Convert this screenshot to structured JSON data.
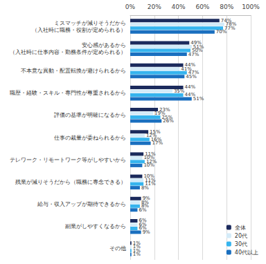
{
  "chart_data": {
    "type": "bar",
    "orientation": "horizontal",
    "categories": [
      "ミスマッチが減りそうだから\n（入社時に職務・役割が定められる）",
      "安心感があるから\n（入社時に仕事内容・勤務条件が定められる）",
      "不本意な異動・配置転換が避けられるから",
      "職歴・経験・スキル・専門性が尊重されるから",
      "評価の基準が明確になるから",
      "仕事の裁量が委ねられるから",
      "テレワーク・リモートワーク等がしやすいから",
      "残業が減りそうだから（職務に専念できる）",
      "給与・収入アップが期待できるから",
      "副業がしやすくなるから",
      "その他"
    ],
    "series": [
      {
        "name": "全体",
        "color": "#1b2a5c",
        "values": [
          74,
          49,
          44,
          44,
          23,
          15,
          11,
          10,
          9,
          6,
          1
        ],
        "value_labels": [
          "74%",
          "49%",
          "44%",
          "44%",
          "23%",
          "15%",
          "11%",
          "10%",
          "9%",
          "6%",
          "1%"
        ]
      },
      {
        "name": "20代",
        "color": "#d4ebf8",
        "values": [
          78,
          51,
          41,
          35,
          19,
          12,
          10,
          11,
          8,
          6,
          1
        ],
        "value_labels": [
          "78%",
          "51%",
          "41%",
          "35%",
          "19%",
          "12%",
          "10%",
          "11%",
          "8%",
          "6%",
          "1%"
        ]
      },
      {
        "name": "30代",
        "color": "#36b4ee",
        "values": [
          77,
          50,
          47,
          44,
          25,
          16,
          12,
          11,
          8,
          6,
          1
        ],
        "value_labels": [
          "77%",
          "50%",
          "47%",
          "44%",
          "25%",
          "16%",
          "12%",
          "11%",
          "8%",
          "6%",
          "1%"
        ]
      },
      {
        "name": "40代以上",
        "color": "#1a6fbf",
        "values": [
          70,
          47,
          45,
          51,
          26,
          17,
          10,
          8,
          6,
          9,
          1
        ],
        "value_labels": [
          "70%",
          "47%",
          "45%",
          "51%",
          "26%",
          "17%",
          "10%",
          "8%",
          "6%",
          "9%",
          "1%"
        ]
      }
    ],
    "xlim": [
      0,
      100
    ],
    "xticks": [
      {
        "value": 0,
        "label": "0%"
      },
      {
        "value": 20,
        "label": "20%"
      },
      {
        "value": 40,
        "label": "40%"
      },
      {
        "value": 60,
        "label": "60%"
      },
      {
        "value": 80,
        "label": "80%"
      },
      {
        "value": 100,
        "label": "100%"
      }
    ],
    "grid": true,
    "legend": "lower right",
    "data_labels": true
  }
}
